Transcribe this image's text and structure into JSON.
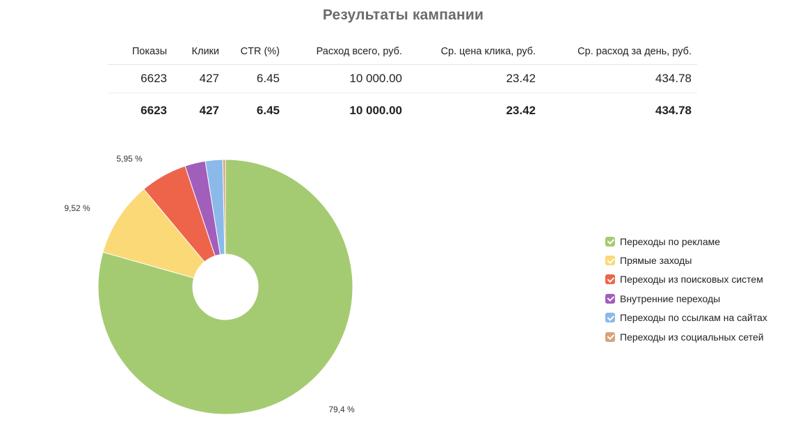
{
  "title": "Результаты кампании",
  "table": {
    "headers": [
      "Показы",
      "Клики",
      "CTR (%)",
      "Расход всего, руб.",
      "Ср. цена клика, руб.",
      "Ср. расход за день, руб."
    ],
    "rows": [
      [
        "6623",
        "427",
        "6.45",
        "10 000.00",
        "23.42",
        "434.78"
      ]
    ],
    "total": [
      "6623",
      "427",
      "6.45",
      "10 000.00",
      "23.42",
      "434.78"
    ]
  },
  "chart_data": {
    "type": "pie",
    "donut": true,
    "categories": [
      "Переходы по рекламе",
      "Прямые заходы",
      "Переходы из поисковых систем",
      "Внутренние переходы",
      "Переходы по ссылкам на сайтах",
      "Переходы из социальных сетей"
    ],
    "values": [
      79.4,
      9.52,
      5.95,
      2.6,
      2.2,
      0.33
    ],
    "value_labels": [
      "79,4 %",
      "9,52 %",
      "5,95 %",
      "",
      "",
      ""
    ],
    "colors": [
      "#a5cb72",
      "#fbd977",
      "#ed644b",
      "#a25ebb",
      "#8ab9ea",
      "#d8a37a"
    ],
    "legend_placement": "right",
    "title": ""
  }
}
